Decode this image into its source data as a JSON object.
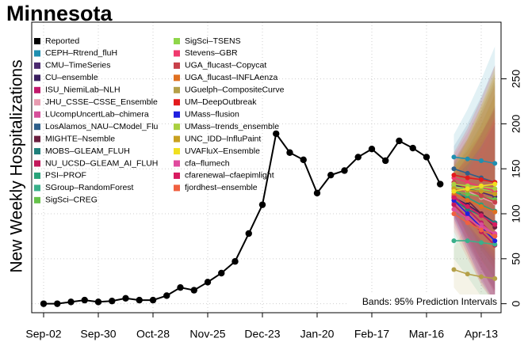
{
  "chart_data": {
    "type": "line",
    "title": "Minnesota",
    "y_label": "New Weekly Hospitalizations",
    "annotation": "Bands: 95% Prediction Intervals",
    "xlim": [
      -0.87,
      33.45
    ],
    "xticks": [
      {
        "value": 0,
        "label": "Sep-02"
      },
      {
        "value": 4,
        "label": "Sep-30"
      },
      {
        "value": 8,
        "label": "Oct-28"
      },
      {
        "value": 12,
        "label": "Nov-25"
      },
      {
        "value": 16,
        "label": "Dec-23"
      },
      {
        "value": 20,
        "label": "Jan-20"
      },
      {
        "value": 24,
        "label": "Feb-17"
      },
      {
        "value": 28,
        "label": "Mar-16"
      },
      {
        "value": 32,
        "label": "Apr-13"
      }
    ],
    "ylim": [
      -10,
      313
    ],
    "yticks": [
      0,
      50,
      100,
      150,
      200,
      250
    ],
    "grid": true,
    "legend": "upper left",
    "series": [
      {
        "name": "Reported",
        "color": "#000000",
        "x": [
          0,
          1,
          2,
          3,
          4,
          5,
          6,
          7,
          8,
          9,
          10,
          11,
          12,
          13,
          14,
          15,
          16,
          17,
          18,
          19,
          20,
          21,
          22,
          23,
          24,
          25,
          26,
          27,
          28,
          29
        ],
        "values": [
          0,
          0,
          2,
          4,
          2,
          3,
          6,
          4,
          4,
          9,
          18,
          15,
          24,
          34,
          47,
          78,
          110,
          189,
          168,
          160,
          123,
          143,
          148,
          163,
          172,
          159,
          181,
          173,
          163,
          133
        ]
      },
      {
        "name": "CEPH–Rtrend_fluH",
        "color": "#1f8fb0",
        "x": [
          30,
          31,
          32,
          33
        ],
        "values": [
          163,
          161,
          159,
          156
        ],
        "lower": [
          143,
          121,
          99,
          81
        ],
        "upper": [
          188,
          216,
          249,
          286
        ]
      },
      {
        "name": "CMU–TimeSeries",
        "color": "#4b2a6e",
        "x": [
          30,
          31,
          32,
          33
        ],
        "values": [
          132,
          128,
          124,
          119
        ],
        "lower": [
          112,
          88,
          64,
          44
        ],
        "upper": [
          157,
          183,
          214,
          249
        ]
      },
      {
        "name": "CU–ensemble",
        "color": "#3a1f5e",
        "x": [
          30,
          31,
          32,
          33
        ],
        "values": [
          118,
          110,
          100,
          90
        ],
        "lower": [
          98,
          70,
          40,
          15
        ],
        "upper": [
          143,
          165,
          190,
          220
        ]
      },
      {
        "name": "ISU_NiemiLab–NLH",
        "color": "#c2186b",
        "x": [
          30,
          31,
          32,
          33
        ],
        "values": [
          120,
          105,
          90,
          75
        ],
        "lower": [
          100,
          65,
          30,
          0
        ],
        "upper": [
          145,
          160,
          180,
          205
        ]
      },
      {
        "name": "JHU_CSSE–CSSE_Ensemble",
        "color": "#e89bb0",
        "x": [
          30,
          31,
          32,
          33
        ],
        "values": [
          130,
          125,
          118,
          112
        ],
        "lower": [
          110,
          85,
          58,
          37
        ],
        "upper": [
          155,
          180,
          208,
          242
        ]
      },
      {
        "name": "LUcompUncertLab–chimera",
        "color": "#d64f9a",
        "x": [
          30,
          31,
          32,
          33
        ],
        "values": [
          112,
          100,
          88,
          77
        ],
        "lower": [
          92,
          60,
          28,
          2
        ],
        "upper": [
          137,
          155,
          178,
          207
        ]
      },
      {
        "name": "LosAlamos_NAU–CModel_Flu",
        "color": "#2e5f8a",
        "x": [
          30,
          31,
          32,
          33
        ],
        "values": [
          150,
          145,
          140,
          135
        ],
        "lower": [
          130,
          105,
          80,
          60
        ],
        "upper": [
          175,
          200,
          230,
          265
        ]
      },
      {
        "name": "MIGHTE–Nsemble",
        "color": "#6b1f3f",
        "x": [
          30,
          31,
          32,
          33
        ],
        "values": [
          128,
          115,
          100,
          85
        ],
        "lower": [
          108,
          75,
          40,
          10
        ],
        "upper": [
          153,
          170,
          190,
          215
        ]
      },
      {
        "name": "MOBS–GLEAM_FLUH",
        "color": "#1f7f7a",
        "x": [
          30,
          31,
          32,
          33
        ],
        "values": [
          115,
          105,
          98,
          90
        ],
        "lower": [
          95,
          65,
          38,
          15
        ],
        "upper": [
          140,
          160,
          188,
          220
        ]
      },
      {
        "name": "NU_UCSD–GLEAM_AI_FLUH",
        "color": "#c2185b",
        "x": [
          30,
          31,
          32,
          33
        ],
        "values": [
          110,
          95,
          80,
          65
        ],
        "lower": [
          90,
          55,
          20,
          0
        ],
        "upper": [
          135,
          150,
          170,
          195
        ]
      },
      {
        "name": "PSI–PROF",
        "color": "#2aa37a",
        "x": [
          30,
          31,
          32,
          33
        ],
        "values": [
          125,
          118,
          110,
          103
        ],
        "lower": [
          105,
          78,
          50,
          28
        ],
        "upper": [
          150,
          173,
          200,
          233
        ]
      },
      {
        "name": "SGroup–RandomForest",
        "color": "#3ab08a",
        "x": [
          30,
          31,
          32,
          33
        ],
        "values": [
          70,
          70,
          68,
          66
        ],
        "lower": [
          50,
          30,
          8,
          0
        ],
        "upper": [
          95,
          125,
          158,
          196
        ]
      },
      {
        "name": "SigSci–CREG",
        "color": "#66c24a",
        "x": [
          30,
          31,
          32,
          33
        ],
        "values": [
          125,
          122,
          119,
          116
        ],
        "lower": [
          105,
          82,
          59,
          41
        ],
        "upper": [
          150,
          177,
          209,
          246
        ]
      },
      {
        "name": "SigSci–TSENS",
        "color": "#8fd64a",
        "x": [
          30,
          31,
          32,
          33
        ],
        "values": [
          130,
          128,
          127,
          125
        ],
        "lower": [
          110,
          88,
          67,
          50
        ],
        "upper": [
          155,
          183,
          217,
          255
        ]
      },
      {
        "name": "Stevens–GBR",
        "color": "#f03a6e",
        "x": [
          30,
          31,
          32,
          33
        ],
        "values": [
          140,
          135,
          130,
          125
        ],
        "lower": [
          120,
          95,
          70,
          50
        ],
        "upper": [
          165,
          190,
          220,
          255
        ]
      },
      {
        "name": "UGA_flucast–Copycat",
        "color": "#c8404a",
        "x": [
          30,
          31,
          32,
          33
        ],
        "values": [
          135,
          128,
          120,
          113
        ],
        "lower": [
          115,
          88,
          60,
          38
        ],
        "upper": [
          160,
          183,
          210,
          243
        ]
      },
      {
        "name": "UGA_flucast–INFLAenza",
        "color": "#e07020",
        "x": [
          30,
          31,
          32,
          33
        ],
        "values": [
          122,
          115,
          108,
          102
        ],
        "lower": [
          102,
          75,
          48,
          27
        ],
        "upper": [
          147,
          170,
          198,
          232
        ]
      },
      {
        "name": "UGuelph–CompositeCurve",
        "color": "#b5a048",
        "x": [
          30,
          31,
          32,
          33
        ],
        "values": [
          38,
          33,
          30,
          28
        ],
        "lower": [
          18,
          0,
          0,
          0
        ],
        "upper": [
          63,
          88,
          120,
          158
        ]
      },
      {
        "name": "UM–DeepOutbreak",
        "color": "#e31a1c",
        "x": [
          30,
          31,
          32,
          33
        ],
        "values": [
          143,
          140,
          138,
          135
        ],
        "lower": [
          123,
          100,
          78,
          60
        ],
        "upper": [
          168,
          195,
          228,
          265
        ]
      },
      {
        "name": "UMass–flusion",
        "color": "#1f1fe0",
        "x": [
          30,
          31,
          32,
          33
        ],
        "values": [
          115,
          100,
          85,
          70
        ],
        "lower": [
          95,
          60,
          25,
          0
        ],
        "upper": [
          140,
          155,
          175,
          200
        ]
      },
      {
        "name": "UMass–trends_ensemble",
        "color": "#aad040",
        "x": [
          30,
          31,
          32,
          33
        ],
        "values": [
          133,
          131,
          130,
          128
        ],
        "lower": [
          113,
          91,
          70,
          53
        ],
        "upper": [
          158,
          186,
          220,
          258
        ]
      },
      {
        "name": "UNC_IDD–InfluPaint",
        "color": "#c8a020",
        "x": [
          30,
          31,
          32,
          33
        ],
        "values": [
          128,
          126,
          125,
          122
        ],
        "lower": [
          108,
          86,
          65,
          47
        ],
        "upper": [
          153,
          181,
          215,
          252
        ]
      },
      {
        "name": "UVAFluX–Ensemble",
        "color": "#f0e020",
        "x": [
          30,
          31,
          32,
          33
        ],
        "values": [
          125,
          128,
          131,
          133
        ],
        "lower": [
          105,
          88,
          71,
          58
        ],
        "upper": [
          150,
          183,
          221,
          263
        ]
      },
      {
        "name": "cfa–flumech",
        "color": "#e04a9e",
        "x": [
          30,
          31,
          32,
          33
        ],
        "values": [
          105,
          95,
          85,
          78
        ],
        "lower": [
          85,
          55,
          25,
          3
        ],
        "upper": [
          130,
          150,
          175,
          208
        ]
      },
      {
        "name": "cfarenewal–cfaepimlight",
        "color": "#d81b60",
        "x": [
          30,
          31,
          32,
          33
        ],
        "values": [
          118,
          108,
          98,
          88
        ],
        "lower": [
          98,
          68,
          38,
          13
        ],
        "upper": [
          143,
          163,
          188,
          218
        ]
      },
      {
        "name": "fjordhest–ensemble",
        "color": "#f06040",
        "x": [
          30,
          31,
          32,
          33
        ],
        "values": [
          100,
          90,
          82,
          75
        ],
        "lower": [
          80,
          50,
          22,
          0
        ],
        "upper": [
          125,
          145,
          172,
          205
        ]
      }
    ]
  }
}
